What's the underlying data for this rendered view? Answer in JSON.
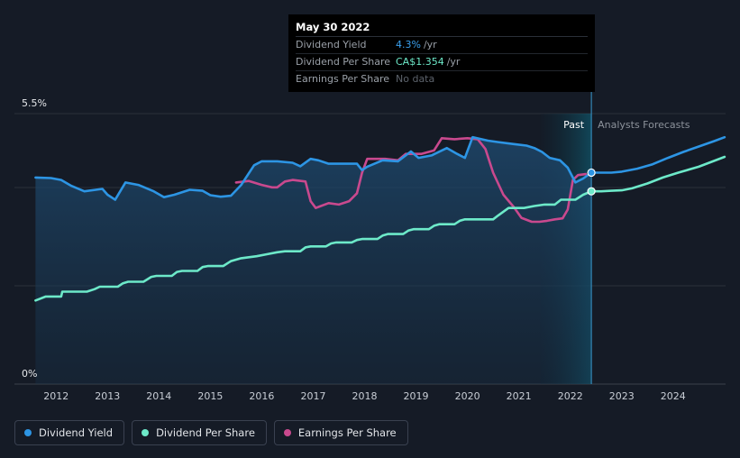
{
  "chart_data": {
    "type": "line",
    "y_axis": {
      "min": 0,
      "max": 5.5,
      "top_label": "5.5%",
      "bottom_label": "0%"
    },
    "x_ticks": [
      "2012",
      "2013",
      "2014",
      "2015",
      "2016",
      "2017",
      "2018",
      "2019",
      "2020",
      "2021",
      "2022",
      "2023",
      "2024"
    ],
    "region_labels": {
      "past": "Past",
      "forecast": "Analysts Forecasts"
    },
    "series": [
      {
        "name": "Dividend Yield",
        "color": "#2d95e4",
        "points": [
          [
            2011.6,
            4.2
          ],
          [
            2011.9,
            4.19
          ],
          [
            2012.1,
            4.15
          ],
          [
            2012.3,
            4.03
          ],
          [
            2012.55,
            3.92
          ],
          [
            2012.9,
            3.97
          ],
          [
            2013.0,
            3.85
          ],
          [
            2013.15,
            3.75
          ],
          [
            2013.35,
            4.1
          ],
          [
            2013.6,
            4.05
          ],
          [
            2013.9,
            3.92
          ],
          [
            2014.1,
            3.8
          ],
          [
            2014.3,
            3.85
          ],
          [
            2014.6,
            3.95
          ],
          [
            2014.85,
            3.93
          ],
          [
            2015.0,
            3.84
          ],
          [
            2015.2,
            3.81
          ],
          [
            2015.4,
            3.83
          ],
          [
            2015.6,
            4.05
          ],
          [
            2015.85,
            4.45
          ],
          [
            2016.0,
            4.53
          ],
          [
            2016.3,
            4.53
          ],
          [
            2016.6,
            4.5
          ],
          [
            2016.75,
            4.43
          ],
          [
            2016.95,
            4.58
          ],
          [
            2017.1,
            4.55
          ],
          [
            2017.3,
            4.48
          ],
          [
            2017.6,
            4.48
          ],
          [
            2017.85,
            4.48
          ],
          [
            2017.95,
            4.35
          ],
          [
            2018.05,
            4.42
          ],
          [
            2018.35,
            4.55
          ],
          [
            2018.65,
            4.53
          ],
          [
            2018.9,
            4.73
          ],
          [
            2019.05,
            4.6
          ],
          [
            2019.3,
            4.65
          ],
          [
            2019.6,
            4.8
          ],
          [
            2019.8,
            4.68
          ],
          [
            2019.95,
            4.6
          ],
          [
            2020.1,
            5.02
          ],
          [
            2020.4,
            4.95
          ],
          [
            2020.6,
            4.92
          ],
          [
            2020.9,
            4.88
          ],
          [
            2021.15,
            4.85
          ],
          [
            2021.3,
            4.8
          ],
          [
            2021.45,
            4.72
          ],
          [
            2021.6,
            4.6
          ],
          [
            2021.8,
            4.55
          ],
          [
            2021.95,
            4.4
          ],
          [
            2022.1,
            4.1
          ],
          [
            2022.25,
            4.18
          ],
          [
            2022.41,
            4.3
          ],
          [
            2022.6,
            4.3
          ],
          [
            2022.8,
            4.3
          ],
          [
            2023.0,
            4.32
          ],
          [
            2023.3,
            4.38
          ],
          [
            2023.6,
            4.47
          ],
          [
            2023.9,
            4.6
          ],
          [
            2024.2,
            4.72
          ],
          [
            2024.5,
            4.83
          ],
          [
            2024.8,
            4.94
          ],
          [
            2025.0,
            5.02
          ]
        ]
      },
      {
        "name": "Dividend Per Share",
        "color": "#6de9c9",
        "points": [
          [
            2011.6,
            1.7
          ],
          [
            2011.8,
            1.78
          ],
          [
            2012.0,
            1.78
          ],
          [
            2012.1,
            1.78
          ],
          [
            2012.12,
            1.88
          ],
          [
            2012.6,
            1.88
          ],
          [
            2012.75,
            1.93
          ],
          [
            2012.85,
            1.98
          ],
          [
            2013.2,
            1.98
          ],
          [
            2013.3,
            2.05
          ],
          [
            2013.4,
            2.08
          ],
          [
            2013.7,
            2.08
          ],
          [
            2013.85,
            2.18
          ],
          [
            2013.95,
            2.2
          ],
          [
            2014.25,
            2.2
          ],
          [
            2014.35,
            2.28
          ],
          [
            2014.45,
            2.3
          ],
          [
            2014.75,
            2.3
          ],
          [
            2014.85,
            2.38
          ],
          [
            2014.95,
            2.4
          ],
          [
            2015.25,
            2.4
          ],
          [
            2015.4,
            2.5
          ],
          [
            2015.6,
            2.56
          ],
          [
            2015.9,
            2.6
          ],
          [
            2016.1,
            2.64
          ],
          [
            2016.3,
            2.68
          ],
          [
            2016.45,
            2.7
          ],
          [
            2016.75,
            2.7
          ],
          [
            2016.85,
            2.78
          ],
          [
            2016.95,
            2.8
          ],
          [
            2017.25,
            2.8
          ],
          [
            2017.35,
            2.86
          ],
          [
            2017.45,
            2.88
          ],
          [
            2017.75,
            2.88
          ],
          [
            2017.85,
            2.93
          ],
          [
            2017.95,
            2.95
          ],
          [
            2018.25,
            2.95
          ],
          [
            2018.35,
            3.02
          ],
          [
            2018.45,
            3.05
          ],
          [
            2018.75,
            3.05
          ],
          [
            2018.85,
            3.12
          ],
          [
            2018.95,
            3.15
          ],
          [
            2019.25,
            3.15
          ],
          [
            2019.35,
            3.22
          ],
          [
            2019.45,
            3.25
          ],
          [
            2019.75,
            3.25
          ],
          [
            2019.85,
            3.32
          ],
          [
            2019.95,
            3.35
          ],
          [
            2020.25,
            3.35
          ],
          [
            2020.35,
            3.35
          ],
          [
            2020.5,
            3.35
          ],
          [
            2020.6,
            3.43
          ],
          [
            2020.8,
            3.58
          ],
          [
            2021.1,
            3.58
          ],
          [
            2021.3,
            3.62
          ],
          [
            2021.5,
            3.65
          ],
          [
            2021.7,
            3.65
          ],
          [
            2021.82,
            3.75
          ],
          [
            2022.1,
            3.75
          ],
          [
            2022.25,
            3.85
          ],
          [
            2022.41,
            3.92
          ],
          [
            2022.6,
            3.92
          ],
          [
            2022.8,
            3.93
          ],
          [
            2023.0,
            3.94
          ],
          [
            2023.2,
            3.98
          ],
          [
            2023.5,
            4.08
          ],
          [
            2023.8,
            4.2
          ],
          [
            2024.1,
            4.3
          ],
          [
            2024.5,
            4.42
          ],
          [
            2024.8,
            4.54
          ],
          [
            2025.0,
            4.62
          ]
        ]
      },
      {
        "name": "Earnings Per Share",
        "color": "#c9498e",
        "points": [
          [
            2015.5,
            4.1
          ],
          [
            2015.75,
            4.13
          ],
          [
            2016.0,
            4.05
          ],
          [
            2016.2,
            4.0
          ],
          [
            2016.3,
            4.0
          ],
          [
            2016.45,
            4.12
          ],
          [
            2016.6,
            4.15
          ],
          [
            2016.85,
            4.12
          ],
          [
            2016.95,
            3.72
          ],
          [
            2017.05,
            3.58
          ],
          [
            2017.15,
            3.62
          ],
          [
            2017.3,
            3.68
          ],
          [
            2017.5,
            3.65
          ],
          [
            2017.7,
            3.72
          ],
          [
            2017.85,
            3.88
          ],
          [
            2017.95,
            4.3
          ],
          [
            2018.05,
            4.58
          ],
          [
            2018.4,
            4.58
          ],
          [
            2018.65,
            4.55
          ],
          [
            2018.8,
            4.68
          ],
          [
            2019.1,
            4.68
          ],
          [
            2019.35,
            4.75
          ],
          [
            2019.5,
            5.0
          ],
          [
            2019.75,
            4.98
          ],
          [
            2020.0,
            5.0
          ],
          [
            2020.2,
            4.98
          ],
          [
            2020.35,
            4.78
          ],
          [
            2020.5,
            4.3
          ],
          [
            2020.7,
            3.85
          ],
          [
            2020.9,
            3.6
          ],
          [
            2021.05,
            3.38
          ],
          [
            2021.25,
            3.3
          ],
          [
            2021.4,
            3.3
          ],
          [
            2021.55,
            3.32
          ],
          [
            2021.7,
            3.35
          ],
          [
            2021.85,
            3.37
          ],
          [
            2021.95,
            3.55
          ],
          [
            2022.05,
            4.15
          ],
          [
            2022.15,
            4.25
          ],
          [
            2022.3,
            4.27
          ]
        ]
      }
    ],
    "markers": [
      {
        "series": "Dividend Per Share",
        "x": 2022.41,
        "y": 3.92,
        "color": "#6de9c9"
      },
      {
        "series": "Dividend Yield",
        "x": 2022.41,
        "y": 4.3,
        "color": "#2d95e4"
      }
    ],
    "past_start": 2021.42,
    "past_end": 2022.41
  },
  "tooltip": {
    "date": "May 30 2022",
    "rows": [
      {
        "name": "Dividend Yield",
        "value": "4.3%",
        "unit": "/yr",
        "color": "#3aa0ee"
      },
      {
        "name": "Dividend Per Share",
        "value": "CA$1.354",
        "unit": "/yr",
        "color": "#6de9c9"
      },
      {
        "name": "Earnings Per Share",
        "value": "No data",
        "unit": "",
        "color": "#5d636c"
      }
    ]
  },
  "legend": [
    {
      "label": "Dividend Yield",
      "color": "#2d95e4"
    },
    {
      "label": "Dividend Per Share",
      "color": "#6de9c9"
    },
    {
      "label": "Earnings Per Share",
      "color": "#c9498e"
    }
  ]
}
